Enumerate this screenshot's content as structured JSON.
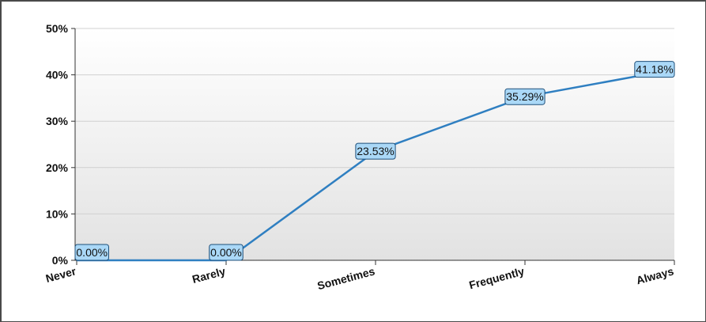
{
  "chart_data": {
    "type": "line",
    "categories": [
      "Never",
      "Rarely",
      "Sometimes",
      "Frequently",
      "Always"
    ],
    "series": [
      {
        "values": [
          0.0,
          0.0,
          23.53,
          35.29,
          41.18
        ]
      }
    ],
    "data_labels": [
      "0.00%",
      "0.00%",
      "23.53%",
      "35.29%",
      "41.18%"
    ],
    "y_ticks": [
      "0%",
      "10%",
      "20%",
      "30%",
      "40%",
      "50%"
    ],
    "ylim": [
      0,
      50
    ],
    "grid": true,
    "colors": {
      "line": "#2f7fc1",
      "label_fill": "#aad8f7",
      "label_border": "#1e4f7a",
      "plot_top": "#ffffff",
      "plot_bottom": "#e2e2e2",
      "grid": "#d0d0d0"
    }
  }
}
